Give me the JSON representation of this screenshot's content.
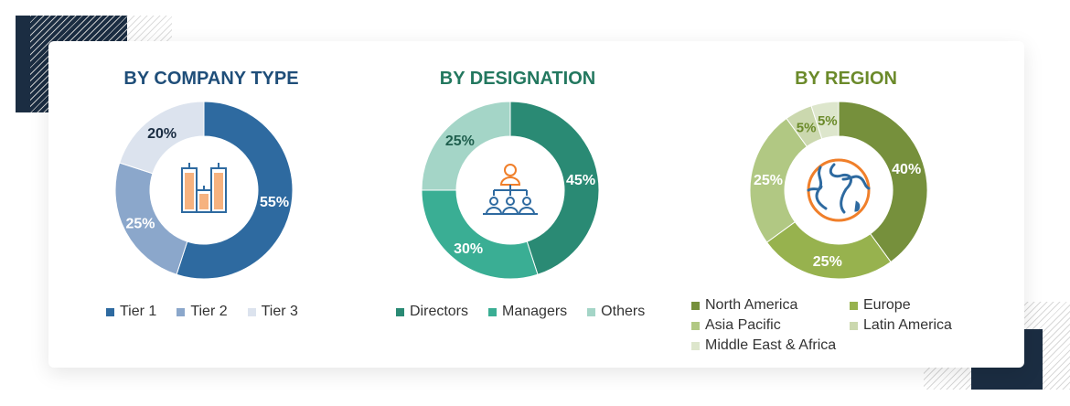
{
  "chart_data": [
    {
      "type": "pie",
      "title": "BY COMPANY TYPE",
      "title_color": "#1f4e79",
      "center_icon": "buildings-icon",
      "categories": [
        "Tier 1",
        "Tier 2",
        "Tier 3"
      ],
      "values": [
        55,
        25,
        20
      ],
      "labels": [
        "55%",
        "25%",
        "20%"
      ],
      "colors": [
        "#2e6aa0",
        "#8ba7cb",
        "#dce3ee"
      ],
      "label_colors": [
        "#ffffff",
        "#ffffff",
        "#1b2d42"
      ],
      "legend": "bottom"
    },
    {
      "type": "pie",
      "title": "BY DESIGNATION",
      "title_color": "#23785f",
      "center_icon": "org-hierarchy-icon",
      "categories": [
        "Directors",
        "Managers",
        "Others"
      ],
      "values": [
        45,
        30,
        25
      ],
      "labels": [
        "45%",
        "30%",
        "25%"
      ],
      "colors": [
        "#2a8a74",
        "#3aae94",
        "#a4d5c7"
      ],
      "label_colors": [
        "#ffffff",
        "#ffffff",
        "#1f5f4e"
      ],
      "legend": "bottom"
    },
    {
      "type": "pie",
      "title": "BY REGION",
      "title_color": "#6b8a2a",
      "center_icon": "globe-icon",
      "categories": [
        "North America",
        "Europe",
        "Asia Pacific",
        "Latin America",
        "Middle East & Africa"
      ],
      "values": [
        40,
        25,
        25,
        5,
        5
      ],
      "labels": [
        "40%",
        "25%",
        "25%",
        "5%",
        "5%"
      ],
      "colors": [
        "#76903c",
        "#97b24e",
        "#b1c883",
        "#cbd8ae",
        "#dde6cc"
      ],
      "label_colors": [
        "#ffffff",
        "#ffffff",
        "#ffffff",
        "#6b8a2a",
        "#6b8a2a"
      ],
      "legend": "bottom"
    }
  ]
}
